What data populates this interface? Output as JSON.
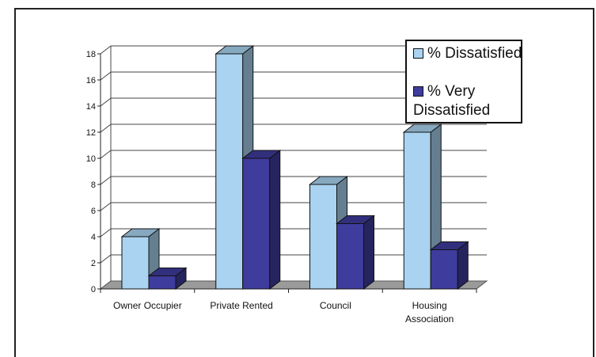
{
  "chart_data": {
    "type": "bar",
    "title": "",
    "xlabel": "",
    "ylabel": "",
    "categories": [
      "Owner Occupier",
      "Private Rented",
      "Council",
      "Housing Association"
    ],
    "series": [
      {
        "name": "% Dissatisfied",
        "values": [
          4,
          18,
          8,
          12
        ],
        "color": "#a9d3f0"
      },
      {
        "name": "% Very Dissatisfied",
        "values": [
          1,
          10,
          5,
          3
        ],
        "color": "#3e3c9c"
      }
    ],
    "ylim": [
      0,
      18
    ],
    "yticks": [
      0,
      2,
      4,
      6,
      8,
      10,
      12,
      14,
      16,
      18
    ],
    "grid": true,
    "legend_position": "top-right",
    "style": "3d-clustered-column"
  },
  "legend": {
    "item1": "% Dissatisfied",
    "item2": "% Very Dissatisfied"
  }
}
